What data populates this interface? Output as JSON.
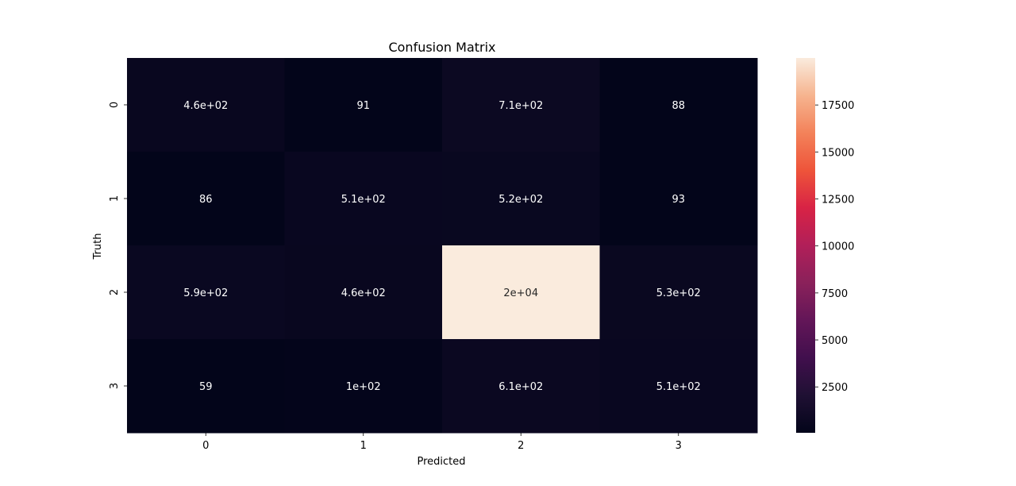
{
  "chart_data": {
    "type": "heatmap",
    "title": "Confusion Matrix",
    "xlabel": "Predicted",
    "ylabel": "Truth",
    "x_categories": [
      "0",
      "1",
      "2",
      "3"
    ],
    "y_categories": [
      "0",
      "1",
      "2",
      "3"
    ],
    "values": [
      [
        460,
        91,
        710,
        88
      ],
      [
        86,
        510,
        520,
        93
      ],
      [
        590,
        460,
        20000,
        530
      ],
      [
        59,
        100,
        610,
        510
      ]
    ],
    "annotations": [
      [
        "4.6e+02",
        "91",
        "7.1e+02",
        "88"
      ],
      [
        "86",
        "5.1e+02",
        "5.2e+02",
        "93"
      ],
      [
        "5.9e+02",
        "4.6e+02",
        "2e+04",
        "5.3e+02"
      ],
      [
        "59",
        "1e+02",
        "6.1e+02",
        "5.1e+02"
      ]
    ],
    "colorbar": {
      "min": 59,
      "max": 20000,
      "ticks": [
        2500,
        5000,
        7500,
        10000,
        12500,
        15000,
        17500
      ],
      "colormap": "rocket"
    }
  }
}
